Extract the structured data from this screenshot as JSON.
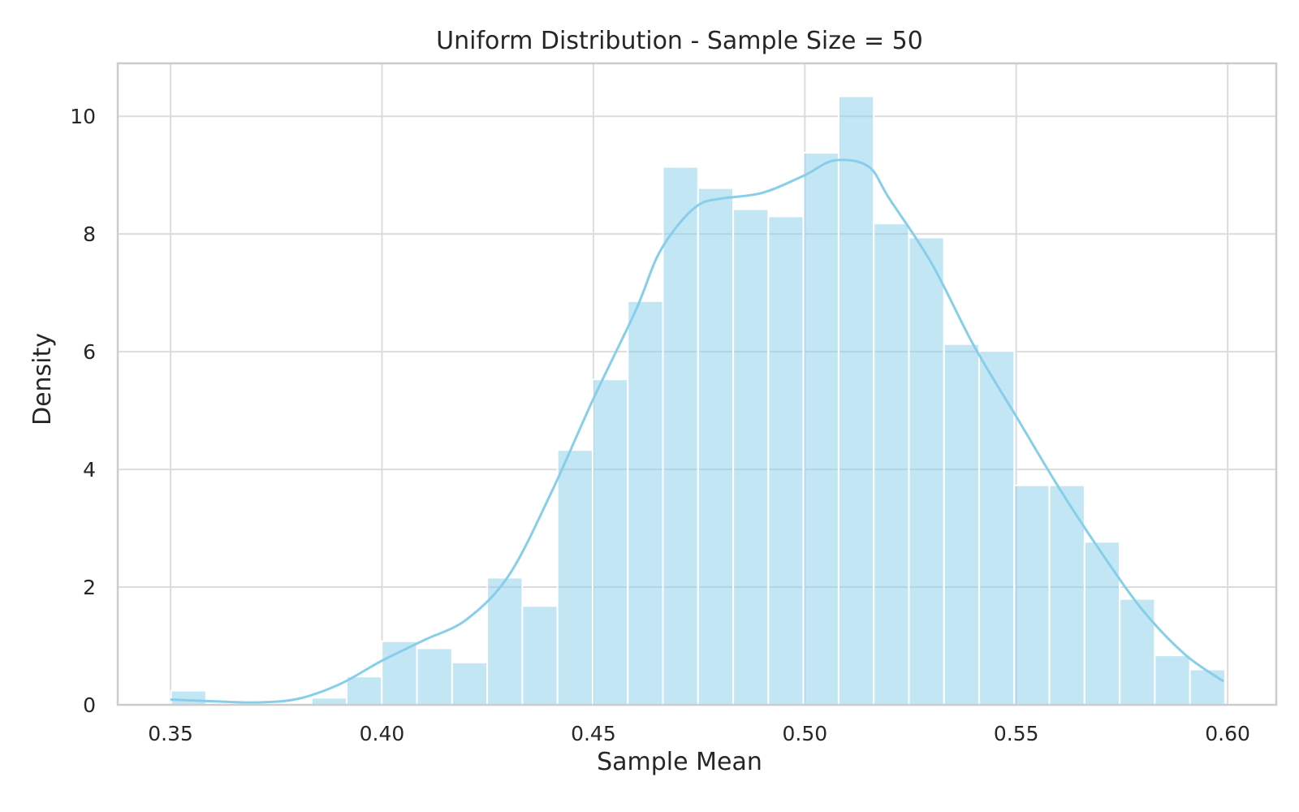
{
  "chart_data": {
    "type": "bar",
    "title": "Uniform Distribution - Sample Size = 50",
    "xlabel": "Sample Mean",
    "ylabel": "Density",
    "xlim": [
      0.3375,
      0.6115
    ],
    "ylim": [
      0,
      10.9
    ],
    "xticks": [
      0.35,
      0.4,
      0.45,
      0.5,
      0.55,
      0.6
    ],
    "xtick_labels": [
      "0.35",
      "0.40",
      "0.45",
      "0.50",
      "0.55",
      "0.60"
    ],
    "yticks": [
      0,
      2,
      4,
      6,
      8,
      10
    ],
    "ytick_labels": [
      "0",
      "2",
      "4",
      "6",
      "8",
      "10"
    ],
    "grid": true,
    "colors": {
      "bar_fill": "#87ceeb",
      "bar_opacity": 0.5,
      "kde_line": "#87ceeb"
    },
    "bins": {
      "start": 0.3501,
      "width": 0.00831,
      "values": [
        0.24,
        0,
        0,
        0,
        0.12,
        0.48,
        1.08,
        0.96,
        0.72,
        2.16,
        1.68,
        4.33,
        5.53,
        6.86,
        9.14,
        8.78,
        8.42,
        8.3,
        9.38,
        10.34,
        8.18,
        7.94,
        6.13,
        6.01,
        3.73,
        3.73,
        2.77,
        1.8,
        0.84,
        0.6
      ]
    },
    "kde": {
      "x": [
        0.35,
        0.36,
        0.37,
        0.38,
        0.39,
        0.4,
        0.41,
        0.42,
        0.43,
        0.44,
        0.45,
        0.46,
        0.465,
        0.47,
        0.475,
        0.48,
        0.49,
        0.5,
        0.507,
        0.515,
        0.52,
        0.53,
        0.54,
        0.55,
        0.56,
        0.57,
        0.58,
        0.59,
        0.599
      ],
      "y": [
        0.09,
        0.06,
        0.04,
        0.1,
        0.35,
        0.75,
        1.1,
        1.45,
        2.2,
        3.6,
        5.2,
        6.7,
        7.6,
        8.15,
        8.5,
        8.6,
        8.7,
        9.0,
        9.25,
        9.15,
        8.6,
        7.5,
        6.1,
        4.9,
        3.7,
        2.6,
        1.6,
        0.85,
        0.4
      ]
    }
  }
}
